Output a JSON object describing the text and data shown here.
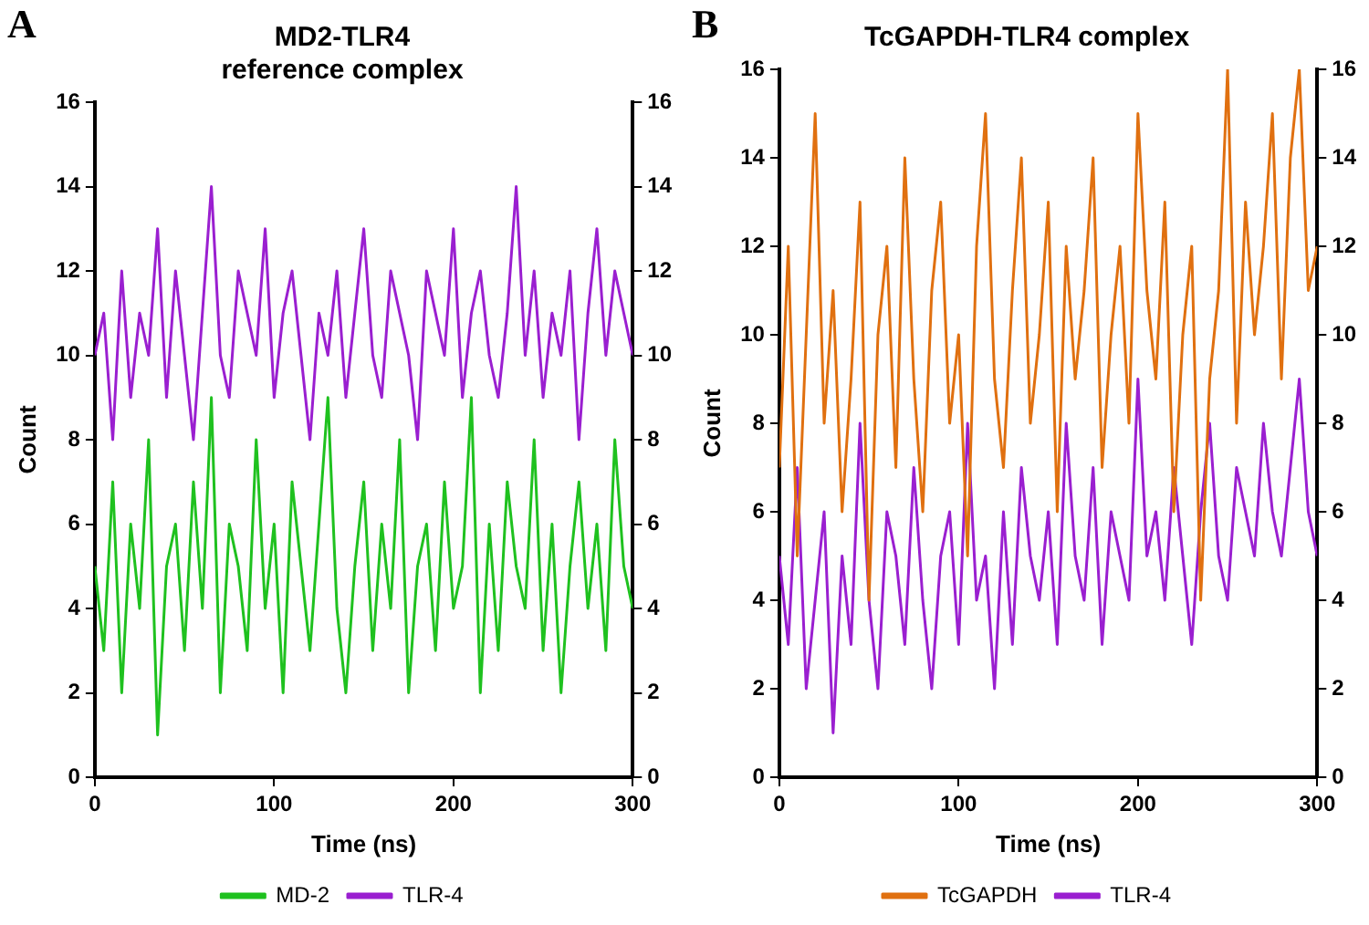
{
  "chart_data": [
    {
      "type": "line",
      "title": "MD2-TLR4\nreference complex",
      "xlabel": "Time (ns)",
      "ylabel": "Count",
      "annotations": [
        "A"
      ],
      "x": [
        0,
        5,
        10,
        15,
        20,
        25,
        30,
        35,
        40,
        45,
        50,
        55,
        60,
        65,
        70,
        75,
        80,
        85,
        90,
        95,
        100,
        105,
        110,
        115,
        120,
        125,
        130,
        135,
        140,
        145,
        150,
        155,
        160,
        165,
        170,
        175,
        180,
        185,
        190,
        195,
        200,
        205,
        210,
        215,
        220,
        225,
        230,
        235,
        240,
        245,
        250,
        255,
        260,
        265,
        270,
        275,
        280,
        285,
        290,
        295,
        300
      ],
      "xlim": [
        0,
        300
      ],
      "xticks": [
        0,
        100,
        200,
        300
      ],
      "ylim": [
        0,
        16
      ],
      "yticks": [
        0,
        2,
        4,
        6,
        8,
        10,
        12,
        14,
        16
      ],
      "y2lim": [
        0,
        16
      ],
      "y2ticks": [
        0,
        2,
        4,
        6,
        8,
        10,
        12,
        14,
        16
      ],
      "grid": false,
      "legend": "bottom",
      "marker": "none",
      "line_style": "solid",
      "series": [
        {
          "name": "MD-2",
          "color": "#1fc11f",
          "values": [
            5,
            3,
            7,
            2,
            6,
            4,
            8,
            1,
            5,
            6,
            3,
            7,
            4,
            9,
            2,
            6,
            5,
            3,
            8,
            4,
            6,
            2,
            7,
            5,
            3,
            6,
            9,
            4,
            2,
            5,
            7,
            3,
            6,
            4,
            8,
            2,
            5,
            6,
            3,
            7,
            4,
            5,
            9,
            2,
            6,
            3,
            7,
            5,
            4,
            8,
            3,
            6,
            2,
            5,
            7,
            4,
            6,
            3,
            8,
            5,
            4
          ]
        },
        {
          "name": "TLR-4",
          "color": "#9a1fd0",
          "values": [
            10,
            11,
            8,
            12,
            9,
            11,
            10,
            13,
            9,
            12,
            10,
            8,
            11,
            14,
            10,
            9,
            12,
            11,
            10,
            13,
            9,
            11,
            12,
            10,
            8,
            11,
            10,
            12,
            9,
            11,
            13,
            10,
            9,
            12,
            11,
            10,
            8,
            12,
            11,
            10,
            13,
            9,
            11,
            12,
            10,
            9,
            11,
            14,
            10,
            12,
            9,
            11,
            10,
            12,
            8,
            11,
            13,
            10,
            12,
            11,
            10
          ]
        }
      ]
    },
    {
      "type": "line",
      "title": "TcGAPDH-TLR4 complex",
      "xlabel": "Time (ns)",
      "ylabel": "Count",
      "annotations": [
        "B"
      ],
      "x": [
        0,
        5,
        10,
        15,
        20,
        25,
        30,
        35,
        40,
        45,
        50,
        55,
        60,
        65,
        70,
        75,
        80,
        85,
        90,
        95,
        100,
        105,
        110,
        115,
        120,
        125,
        130,
        135,
        140,
        145,
        150,
        155,
        160,
        165,
        170,
        175,
        180,
        185,
        190,
        195,
        200,
        205,
        210,
        215,
        220,
        225,
        230,
        235,
        240,
        245,
        250,
        255,
        260,
        265,
        270,
        275,
        280,
        285,
        290,
        295,
        300
      ],
      "xlim": [
        0,
        300
      ],
      "xticks": [
        0,
        100,
        200,
        300
      ],
      "ylim": [
        0,
        16
      ],
      "yticks": [
        0,
        2,
        4,
        6,
        8,
        10,
        12,
        14,
        16
      ],
      "y2lim": [
        0,
        16
      ],
      "y2ticks": [
        0,
        2,
        4,
        6,
        8,
        10,
        12,
        14,
        16
      ],
      "grid": false,
      "legend": "bottom",
      "marker": "none",
      "line_style": "solid",
      "series": [
        {
          "name": "TcGAPDH",
          "color": "#e07010",
          "values": [
            7,
            12,
            5,
            10,
            15,
            8,
            11,
            6,
            9,
            13,
            4,
            10,
            12,
            7,
            14,
            9,
            6,
            11,
            13,
            8,
            10,
            5,
            12,
            15,
            9,
            7,
            11,
            14,
            8,
            10,
            13,
            6,
            12,
            9,
            11,
            14,
            7,
            10,
            12,
            8,
            15,
            11,
            9,
            13,
            6,
            10,
            12,
            4,
            9,
            11,
            16,
            8,
            13,
            10,
            12,
            15,
            9,
            14,
            16,
            11,
            12
          ]
        },
        {
          "name": "TLR-4",
          "color": "#9a1fd0",
          "values": [
            5,
            3,
            7,
            2,
            4,
            6,
            1,
            5,
            3,
            8,
            4,
            2,
            6,
            5,
            3,
            7,
            4,
            2,
            5,
            6,
            3,
            8,
            4,
            5,
            2,
            6,
            3,
            7,
            5,
            4,
            6,
            3,
            8,
            5,
            4,
            7,
            3,
            6,
            5,
            4,
            9,
            5,
            6,
            4,
            7,
            5,
            3,
            6,
            8,
            5,
            4,
            7,
            6,
            5,
            8,
            6,
            5,
            7,
            9,
            6,
            5
          ]
        }
      ]
    }
  ]
}
